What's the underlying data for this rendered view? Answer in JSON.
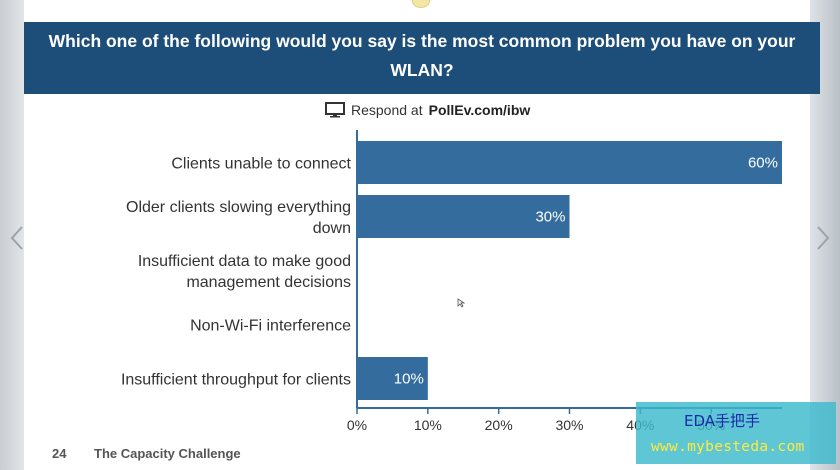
{
  "header": {
    "question": "Which one of the following would you say is the most common problem you have on your WLAN?"
  },
  "respond": {
    "prefix": "Respond at",
    "url": "PollEv.com/ibw",
    "icon": "monitor-icon"
  },
  "footer": {
    "slide_number": "24",
    "title": "The Capacity Challenge"
  },
  "watermark": {
    "line1": "EDA手把手",
    "line2": "www.mybesteda.com"
  },
  "colors": {
    "header_bg": "#1d4e7a",
    "bar": "#336c9d",
    "axis": "#336c9d"
  },
  "chart_data": {
    "type": "bar",
    "orientation": "horizontal",
    "categories": [
      [
        "Clients unable to connect"
      ],
      [
        "Older clients slowing everything",
        "down"
      ],
      [
        "Insufficient data to make good",
        "management decisions"
      ],
      [
        "Non-Wi-Fi interference"
      ],
      [
        "Insufficient throughput for clients"
      ]
    ],
    "values": [
      60,
      30,
      0,
      0,
      10
    ],
    "value_labels": [
      "60%",
      "30%",
      "",
      "",
      "10%"
    ],
    "xlim": [
      0,
      60
    ],
    "ticks": [
      0,
      10,
      20,
      30,
      40,
      50
    ],
    "tick_labels": [
      "0%",
      "10%",
      "20%",
      "30%",
      "40%",
      "50%"
    ],
    "grid": false,
    "legend": "none"
  }
}
